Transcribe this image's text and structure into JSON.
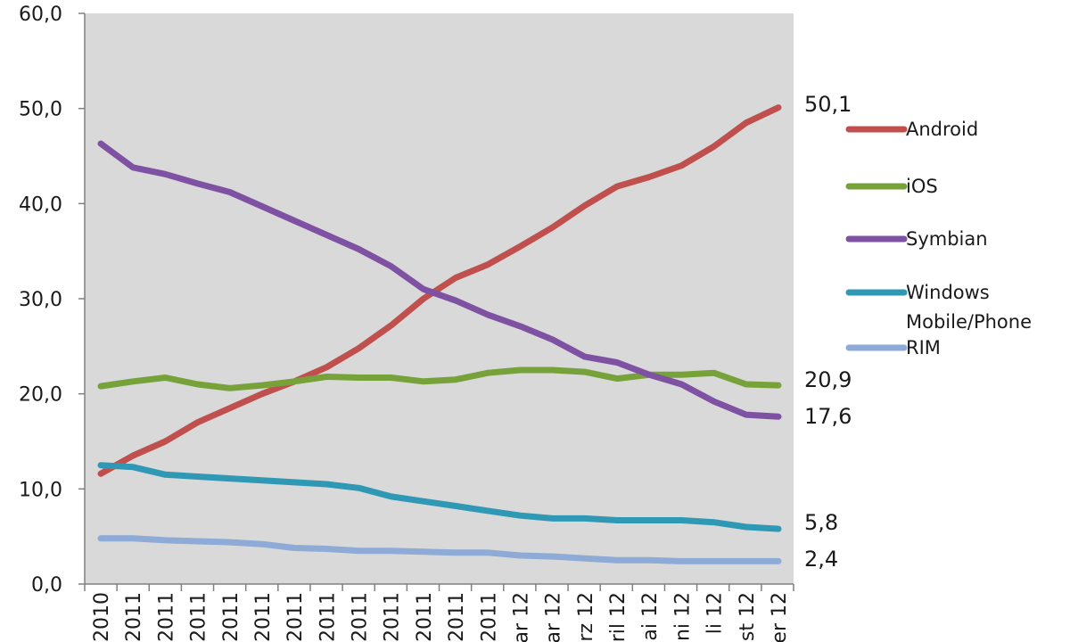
{
  "chart_data": {
    "type": "line",
    "ylim": [
      0,
      60
    ],
    "yticks": [
      "0,0",
      "10,0",
      "20,0",
      "30,0",
      "40,0",
      "50,0",
      "60,0"
    ],
    "ytick_values": [
      0,
      10,
      20,
      30,
      40,
      50,
      60
    ],
    "grid": false,
    "legend_position": "right",
    "x": [
      "2010",
      "2011",
      "2011",
      "2011",
      "2011",
      "2011",
      "2011",
      "2011",
      "2011",
      "2011",
      "2011",
      "2011",
      "2011",
      "ar 12",
      "ar 12",
      "rz 12",
      "ril 12",
      "ai 12",
      "ni 12",
      "li 12",
      "st 12",
      "er 12"
    ],
    "series": [
      {
        "name": "Android",
        "color": "#c0504d",
        "values": [
          11.6,
          13.5,
          15.0,
          17.0,
          18.5,
          20.0,
          21.3,
          22.8,
          24.8,
          27.2,
          30.0,
          32.2,
          33.6,
          35.5,
          37.5,
          39.8,
          41.8,
          42.8,
          44.0,
          46.0,
          48.5,
          50.1
        ]
      },
      {
        "name": "iOS",
        "color": "#77a23a",
        "values": [
          20.8,
          21.3,
          21.7,
          21.0,
          20.6,
          20.9,
          21.3,
          21.8,
          21.7,
          21.7,
          21.3,
          21.5,
          22.2,
          22.5,
          22.5,
          22.3,
          21.6,
          22.0,
          22.0,
          22.2,
          21.0,
          20.9
        ]
      },
      {
        "name": "Symbian",
        "color": "#7e51a2",
        "values": [
          46.3,
          43.8,
          43.1,
          42.1,
          41.2,
          39.7,
          38.2,
          36.7,
          35.2,
          33.4,
          31.0,
          29.8,
          28.3,
          27.1,
          25.7,
          23.9,
          23.3,
          22.0,
          21.0,
          19.2,
          17.8,
          17.6
        ]
      },
      {
        "name": "Windows\nMobile/Phone",
        "color": "#2f98b4",
        "values": [
          12.5,
          12.3,
          11.5,
          11.3,
          11.1,
          10.9,
          10.7,
          10.5,
          10.1,
          9.2,
          8.7,
          8.2,
          7.7,
          7.2,
          6.9,
          6.9,
          6.7,
          6.7,
          6.7,
          6.5,
          6.0,
          5.8
        ]
      },
      {
        "name": "RIM",
        "color": "#8eaad6",
        "values": [
          4.8,
          4.8,
          4.6,
          4.5,
          4.4,
          4.2,
          3.8,
          3.7,
          3.5,
          3.5,
          3.4,
          3.3,
          3.3,
          3.0,
          2.9,
          2.7,
          2.5,
          2.5,
          2.4,
          2.4,
          2.4,
          2.4
        ]
      }
    ],
    "end_labels": [
      "50,1",
      "20,9",
      "17,6",
      "5,8",
      "2,4"
    ],
    "end_label_values": [
      50.1,
      20.9,
      17.6,
      5.8,
      2.4
    ],
    "legend": [
      {
        "label": "Android",
        "color": "#c0504d"
      },
      {
        "label": "iOS",
        "color": "#77a23a"
      },
      {
        "label": "Symbian",
        "color": "#7e51a2"
      },
      {
        "label": "Windows",
        "label2": "Mobile/Phone",
        "color": "#2f98b4"
      },
      {
        "label": "RIM",
        "color": "#8eaad6"
      }
    ]
  }
}
